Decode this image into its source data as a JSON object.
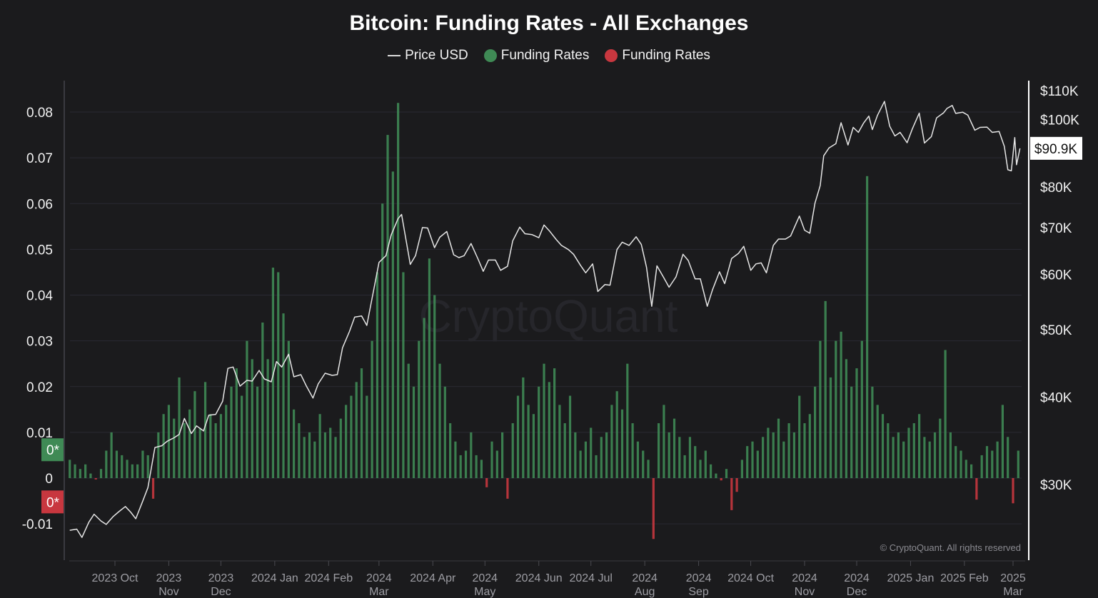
{
  "chart_data": {
    "type": "bar+line",
    "title": "Bitcoin: Funding Rates - All Exchanges",
    "legend": [
      {
        "name": "Price USD",
        "marker": "line",
        "color": "#dcdcdc"
      },
      {
        "name": "Funding Rates",
        "marker": "dot",
        "color": "#3f8a55"
      },
      {
        "name": "Funding Rates",
        "marker": "dot",
        "color": "#c8373f"
      }
    ],
    "legend_placement": "top-center",
    "grid": true,
    "left_axis": {
      "ylim": [
        -0.018,
        0.087
      ],
      "ticks": [
        {
          "v": 0.08,
          "label": "0.08"
        },
        {
          "v": 0.07,
          "label": "0.07"
        },
        {
          "v": 0.06,
          "label": "0.06"
        },
        {
          "v": 0.05,
          "label": "0.05"
        },
        {
          "v": 0.04,
          "label": "0.04"
        },
        {
          "v": 0.03,
          "label": "0.03"
        },
        {
          "v": 0.02,
          "label": "0.02"
        },
        {
          "v": 0.01,
          "label": "0.01"
        },
        {
          "v": 0,
          "label": "0"
        },
        {
          "v": -0.01,
          "label": "-0.01"
        }
      ],
      "markers": [
        {
          "label": "0*",
          "color": "#3f8a55",
          "v": 0.0062
        },
        {
          "label": "0*",
          "color": "#c8373f",
          "v": -0.0052
        }
      ]
    },
    "right_axis": {
      "scale": "log",
      "ticks": [
        {
          "v": 110000,
          "label": "$110K"
        },
        {
          "v": 100000,
          "label": "$100K"
        },
        {
          "v": 80000,
          "label": "$80K"
        },
        {
          "v": 70000,
          "label": "$70K"
        },
        {
          "v": 60000,
          "label": "$60K"
        },
        {
          "v": 50000,
          "label": "$50K"
        },
        {
          "v": 40000,
          "label": "$40K"
        },
        {
          "v": 30000,
          "label": "$30K"
        }
      ],
      "current_label": "$90.9K"
    },
    "x_ticks": [
      {
        "date": "2023-10-01",
        "label": "2023 Oct"
      },
      {
        "date": "2023-11-01",
        "label": "2023\nNov"
      },
      {
        "date": "2023-12-01",
        "label": "2023\nDec"
      },
      {
        "date": "2024-01-01",
        "label": "2024 Jan"
      },
      {
        "date": "2024-02-01",
        "label": "2024 Feb"
      },
      {
        "date": "2024-03-01",
        "label": "2024\nMar"
      },
      {
        "date": "2024-04-01",
        "label": "2024 Apr"
      },
      {
        "date": "2024-05-01",
        "label": "2024\nMay"
      },
      {
        "date": "2024-06-01",
        "label": "2024 Jun"
      },
      {
        "date": "2024-07-01",
        "label": "2024 Jul"
      },
      {
        "date": "2024-08-01",
        "label": "2024\nAug"
      },
      {
        "date": "2024-09-01",
        "label": "2024\nSep"
      },
      {
        "date": "2024-10-01",
        "label": "2024 Oct"
      },
      {
        "date": "2024-11-01",
        "label": "2024\nNov"
      },
      {
        "date": "2024-12-01",
        "label": "2024\nDec"
      },
      {
        "date": "2025-01-01",
        "label": "2025 Jan"
      },
      {
        "date": "2025-02-01",
        "label": "2025 Feb"
      },
      {
        "date": "2025-03-01",
        "label": "2025\nMar"
      }
    ],
    "price_usd": [
      [
        "2023-09-05",
        25800
      ],
      [
        "2023-09-09",
        25900
      ],
      [
        "2023-09-12",
        25200
      ],
      [
        "2023-09-16",
        26500
      ],
      [
        "2023-09-19",
        27200
      ],
      [
        "2023-09-23",
        26600
      ],
      [
        "2023-09-26",
        26300
      ],
      [
        "2023-09-30",
        27000
      ],
      [
        "2023-10-03",
        27400
      ],
      [
        "2023-10-07",
        27900
      ],
      [
        "2023-10-10",
        27400
      ],
      [
        "2023-10-13",
        26800
      ],
      [
        "2023-10-17",
        28400
      ],
      [
        "2023-10-20",
        29700
      ],
      [
        "2023-10-24",
        33900
      ],
      [
        "2023-10-28",
        34100
      ],
      [
        "2023-10-31",
        34600
      ],
      [
        "2023-11-04",
        35000
      ],
      [
        "2023-11-07",
        35400
      ],
      [
        "2023-11-10",
        37300
      ],
      [
        "2023-11-14",
        35500
      ],
      [
        "2023-11-17",
        36400
      ],
      [
        "2023-11-21",
        35800
      ],
      [
        "2023-11-24",
        37700
      ],
      [
        "2023-11-28",
        37800
      ],
      [
        "2023-12-02",
        39500
      ],
      [
        "2023-12-05",
        44000
      ],
      [
        "2023-12-08",
        44200
      ],
      [
        "2023-12-12",
        41500
      ],
      [
        "2023-12-16",
        42300
      ],
      [
        "2023-12-19",
        42200
      ],
      [
        "2023-12-23",
        43700
      ],
      [
        "2023-12-26",
        42500
      ],
      [
        "2023-12-30",
        42100
      ],
      [
        "2024-01-02",
        45000
      ],
      [
        "2024-01-05",
        44200
      ],
      [
        "2024-01-09",
        46100
      ],
      [
        "2024-01-12",
        42800
      ],
      [
        "2024-01-16",
        43100
      ],
      [
        "2024-01-19",
        41600
      ],
      [
        "2024-01-23",
        39900
      ],
      [
        "2024-01-26",
        41800
      ],
      [
        "2024-01-30",
        43300
      ],
      [
        "2024-02-03",
        43000
      ],
      [
        "2024-02-06",
        43100
      ],
      [
        "2024-02-09",
        47100
      ],
      [
        "2024-02-13",
        49700
      ],
      [
        "2024-02-16",
        52100
      ],
      [
        "2024-02-20",
        52300
      ],
      [
        "2024-02-23",
        50700
      ],
      [
        "2024-02-27",
        57100
      ],
      [
        "2024-03-01",
        62400
      ],
      [
        "2024-03-05",
        63800
      ],
      [
        "2024-03-08",
        68300
      ],
      [
        "2024-03-12",
        72100
      ],
      [
        "2024-03-14",
        73100
      ],
      [
        "2024-03-19",
        62000
      ],
      [
        "2024-03-22",
        63800
      ],
      [
        "2024-03-26",
        70000
      ],
      [
        "2024-03-29",
        69900
      ],
      [
        "2024-04-02",
        65500
      ],
      [
        "2024-04-05",
        67800
      ],
      [
        "2024-04-09",
        69100
      ],
      [
        "2024-04-13",
        64000
      ],
      [
        "2024-04-16",
        63400
      ],
      [
        "2024-04-19",
        63800
      ],
      [
        "2024-04-23",
        66400
      ],
      [
        "2024-04-27",
        63100
      ],
      [
        "2024-04-30",
        60600
      ],
      [
        "2024-05-03",
        62900
      ],
      [
        "2024-05-07",
        62900
      ],
      [
        "2024-05-10",
        60800
      ],
      [
        "2024-05-14",
        61600
      ],
      [
        "2024-05-17",
        67000
      ],
      [
        "2024-05-21",
        70100
      ],
      [
        "2024-05-24",
        68600
      ],
      [
        "2024-05-28",
        68400
      ],
      [
        "2024-06-01",
        67700
      ],
      [
        "2024-06-04",
        70600
      ],
      [
        "2024-06-07",
        69300
      ],
      [
        "2024-06-11",
        67300
      ],
      [
        "2024-06-14",
        66000
      ],
      [
        "2024-06-18",
        65100
      ],
      [
        "2024-06-21",
        64100
      ],
      [
        "2024-06-25",
        61800
      ],
      [
        "2024-06-28",
        60300
      ],
      [
        "2024-07-02",
        62100
      ],
      [
        "2024-07-05",
        56700
      ],
      [
        "2024-07-09",
        58000
      ],
      [
        "2024-07-12",
        57900
      ],
      [
        "2024-07-16",
        65100
      ],
      [
        "2024-07-19",
        66700
      ],
      [
        "2024-07-23",
        66000
      ],
      [
        "2024-07-27",
        67900
      ],
      [
        "2024-07-30",
        66200
      ],
      [
        "2024-08-02",
        61400
      ],
      [
        "2024-08-05",
        54000
      ],
      [
        "2024-08-08",
        61700
      ],
      [
        "2024-08-12",
        59300
      ],
      [
        "2024-08-15",
        57500
      ],
      [
        "2024-08-19",
        59500
      ],
      [
        "2024-08-23",
        64100
      ],
      [
        "2024-08-26",
        62800
      ],
      [
        "2024-08-30",
        59100
      ],
      [
        "2024-09-02",
        59100
      ],
      [
        "2024-09-06",
        54000
      ],
      [
        "2024-09-09",
        57000
      ],
      [
        "2024-09-13",
        60500
      ],
      [
        "2024-09-16",
        58200
      ],
      [
        "2024-09-20",
        63200
      ],
      [
        "2024-09-24",
        64300
      ],
      [
        "2024-09-27",
        65800
      ],
      [
        "2024-10-01",
        60800
      ],
      [
        "2024-10-04",
        62100
      ],
      [
        "2024-10-07",
        62300
      ],
      [
        "2024-10-10",
        60300
      ],
      [
        "2024-10-14",
        66000
      ],
      [
        "2024-10-17",
        67400
      ],
      [
        "2024-10-21",
        67400
      ],
      [
        "2024-10-24",
        68100
      ],
      [
        "2024-10-29",
        72700
      ],
      [
        "2024-11-01",
        69400
      ],
      [
        "2024-11-04",
        68700
      ],
      [
        "2024-11-07",
        75900
      ],
      [
        "2024-11-10",
        80400
      ],
      [
        "2024-11-12",
        88700
      ],
      [
        "2024-11-15",
        91000
      ],
      [
        "2024-11-19",
        92300
      ],
      [
        "2024-11-22",
        98900
      ],
      [
        "2024-11-26",
        91900
      ],
      [
        "2024-11-29",
        97400
      ],
      [
        "2024-12-02",
        95800
      ],
      [
        "2024-12-05",
        98800
      ],
      [
        "2024-12-08",
        101100
      ],
      [
        "2024-12-10",
        96700
      ],
      [
        "2024-12-13",
        101400
      ],
      [
        "2024-12-17",
        106100
      ],
      [
        "2024-12-20",
        97800
      ],
      [
        "2024-12-23",
        94700
      ],
      [
        "2024-12-26",
        95800
      ],
      [
        "2024-12-30",
        92600
      ],
      [
        "2025-01-02",
        96900
      ],
      [
        "2025-01-06",
        102100
      ],
      [
        "2025-01-09",
        92500
      ],
      [
        "2025-01-13",
        94500
      ],
      [
        "2025-01-16",
        100500
      ],
      [
        "2025-01-20",
        102200
      ],
      [
        "2025-01-22",
        103700
      ],
      [
        "2025-01-25",
        104700
      ],
      [
        "2025-01-27",
        102000
      ],
      [
        "2025-01-31",
        102400
      ],
      [
        "2025-02-03",
        101400
      ],
      [
        "2025-02-07",
        96500
      ],
      [
        "2025-02-10",
        97400
      ],
      [
        "2025-02-14",
        97500
      ],
      [
        "2025-02-17",
        95800
      ],
      [
        "2025-02-21",
        96100
      ],
      [
        "2025-02-24",
        91500
      ],
      [
        "2025-02-26",
        84700
      ],
      [
        "2025-02-28",
        84400
      ],
      [
        "2025-03-02",
        94200
      ],
      [
        "2025-03-03",
        86100
      ],
      [
        "2025-03-05",
        90900
      ]
    ],
    "funding_rates": {
      "start_date": "2023-09-05",
      "step_days": 3,
      "values": [
        0.004,
        0.003,
        0.002,
        0.003,
        0.001,
        -0.0003,
        0.002,
        0.006,
        0.01,
        0.006,
        0.005,
        0.004,
        0.003,
        0.003,
        0.006,
        0.005,
        -0.0045,
        0.01,
        0.014,
        0.016,
        0.013,
        0.022,
        0.012,
        0.015,
        0.019,
        0.011,
        0.021,
        0.014,
        0.012,
        0.014,
        0.016,
        0.02,
        0.024,
        0.018,
        0.03,
        0.026,
        0.02,
        0.034,
        0.026,
        0.046,
        0.045,
        0.036,
        0.03,
        0.015,
        0.012,
        0.009,
        0.01,
        0.008,
        0.014,
        0.01,
        0.011,
        0.009,
        0.013,
        0.016,
        0.018,
        0.021,
        0.024,
        0.018,
        0.03,
        0.045,
        0.06,
        0.075,
        0.067,
        0.082,
        0.045,
        0.025,
        0.02,
        0.03,
        0.035,
        0.048,
        0.04,
        0.025,
        0.02,
        0.012,
        0.008,
        0.005,
        0.006,
        0.01,
        0.005,
        0.004,
        -0.002,
        0.008,
        0.006,
        0.01,
        -0.0045,
        0.012,
        0.018,
        0.022,
        0.016,
        0.014,
        0.02,
        0.025,
        0.021,
        0.024,
        0.016,
        0.012,
        0.018,
        0.01,
        0.006,
        0.008,
        0.011,
        0.005,
        0.009,
        0.01,
        0.016,
        0.019,
        0.015,
        0.025,
        0.012,
        0.008,
        0.006,
        0.004,
        -0.0133,
        0.012,
        0.016,
        0.01,
        0.013,
        0.009,
        0.005,
        0.009,
        0.007,
        0.004,
        0.006,
        0.003,
        0.001,
        -0.0005,
        0.002,
        -0.007,
        -0.003,
        0.004,
        0.007,
        0.008,
        0.006,
        0.009,
        0.011,
        0.01,
        0.013,
        0.008,
        0.012,
        0.01,
        0.018,
        0.012,
        0.014,
        0.02,
        0.03,
        0.0387,
        0.022,
        0.03,
        0.032,
        0.026,
        0.02,
        0.024,
        0.03,
        0.066,
        0.02,
        0.016,
        0.014,
        0.012,
        0.009,
        0.01,
        0.008,
        0.011,
        0.012,
        0.014,
        0.009,
        0.008,
        0.01,
        0.013,
        0.028,
        0.01,
        0.007,
        0.006,
        0.004,
        0.003,
        -0.0047,
        0.005,
        0.007,
        0.006,
        0.008,
        0.016,
        0.009,
        -0.0055,
        0.006
      ]
    },
    "watermark": "CryptoQuant",
    "copyright": "© CryptoQuant. All rights reserved"
  }
}
